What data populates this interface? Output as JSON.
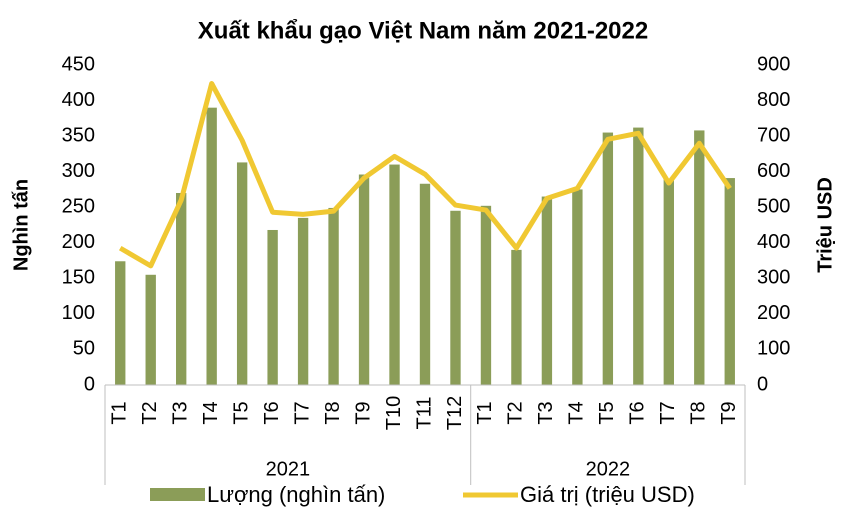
{
  "chart_data": {
    "type": "bar_line",
    "title": "Xuất khẩu gạo Việt Nam năm 2021-2022",
    "y_label": "Nghìn tấn",
    "y2_label": "Triệu USD",
    "categories": [
      "T1",
      "T2",
      "T3",
      "T4",
      "T5",
      "T6",
      "T7",
      "T8",
      "T9",
      "T10",
      "T11",
      "T12",
      "T1",
      "T2",
      "T3",
      "T4",
      "T5",
      "T6",
      "T7",
      "T8",
      "T9"
    ],
    "groups": [
      {
        "label": "2021",
        "count": 12
      },
      {
        "label": "2022",
        "count": 9
      }
    ],
    "series": [
      {
        "name": "Lượng (nghìn tấn)",
        "type": "bar",
        "color": "#8b9d58",
        "values": [
          174,
          155,
          270,
          390,
          313,
          218,
          235,
          249,
          296,
          310,
          283,
          245,
          252,
          190,
          265,
          275,
          355,
          362,
          290,
          358,
          291
        ]
      },
      {
        "name": "Giá trị (triệu USD)",
        "type": "line",
        "axis": "y2",
        "color": "#f0c832",
        "values": [
          385,
          335,
          520,
          848,
          688,
          486,
          480,
          489,
          582,
          643,
          593,
          506,
          492,
          385,
          525,
          553,
          691,
          708,
          568,
          680,
          553
        ]
      }
    ],
    "ylim": [
      0,
      450
    ],
    "yticks": [
      0,
      50,
      100,
      150,
      200,
      250,
      300,
      350,
      400,
      450
    ],
    "y2lim": [
      0,
      900
    ],
    "y2ticks": [
      0,
      100,
      200,
      300,
      400,
      500,
      600,
      700,
      800,
      900
    ],
    "legend": "bottom"
  }
}
